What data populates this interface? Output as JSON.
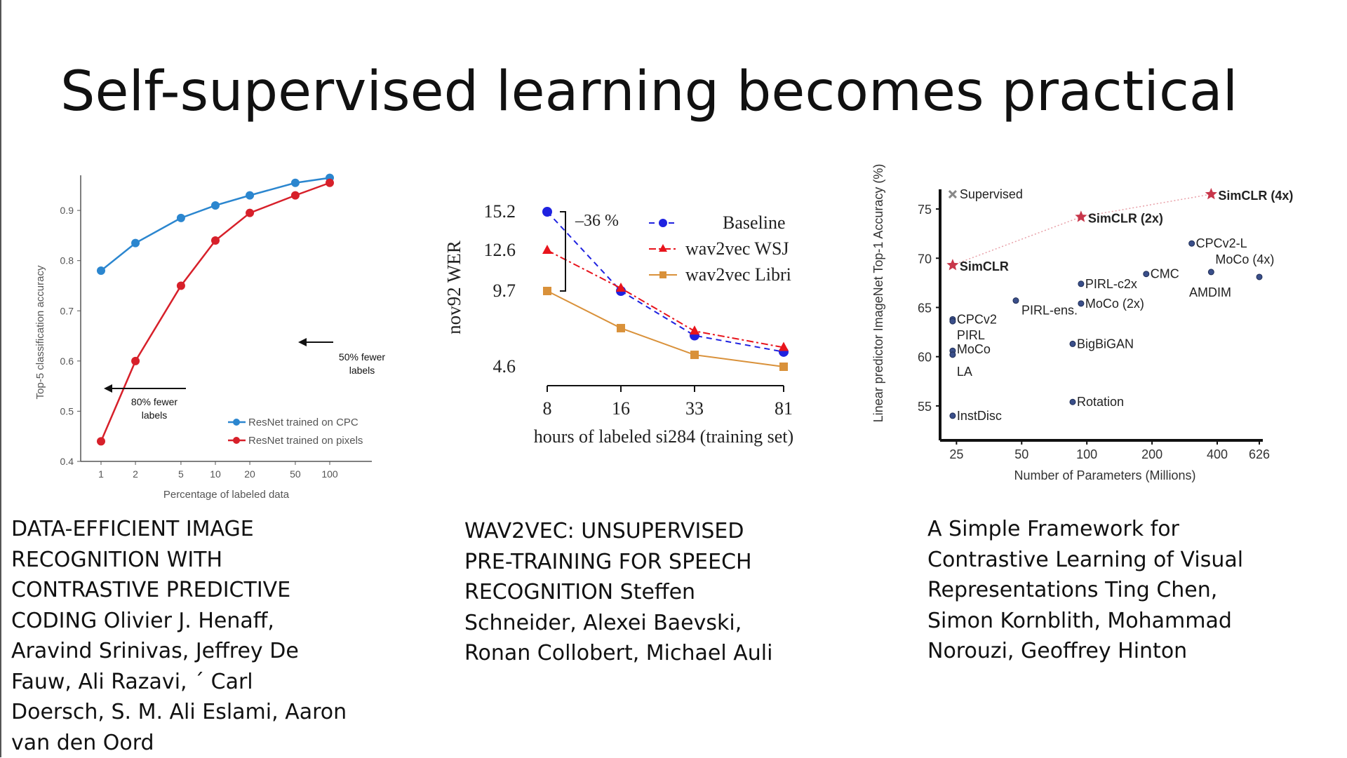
{
  "slide": {
    "title": "Self-supervised learning becomes practical",
    "captions": [
      "DATA-EFFICIENT IMAGE RECOGNITION WITH CONTRASTIVE PREDICTIVE CODING Olivier J. Henaff, Aravind Srinivas, Jeffrey De Fauw, Ali Razavi, ´ Carl Doersch, S. M. Ali Eslami, Aaron van den Oord",
      "WAV2VEC: UNSUPERVISED PRE-TRAINING FOR SPEECH RECOGNITION Steffen Schneider, Alexei Baevski, Ronan Collobert, Michael Auli",
      "A Simple Framework for Contrastive Learning of Visual Representations Ting Chen, Simon Kornblith, Mohammad Norouzi, Geoffrey Hinton"
    ]
  },
  "chart_data": [
    {
      "type": "line",
      "xlabel": "Percentage of labeled data",
      "ylabel": "Top-5 classification accuracy",
      "categories": [
        "1",
        "2",
        "5",
        "10",
        "20",
        "50",
        "100"
      ],
      "ylim": [
        0.4,
        0.97
      ],
      "yticks": [
        "0.4",
        "0.5",
        "0.6",
        "0.7",
        "0.8",
        "0.9"
      ],
      "series": [
        {
          "name": "ResNet trained on CPC",
          "color": "#2b86cf",
          "values": [
            0.78,
            0.835,
            0.885,
            0.91,
            0.93,
            0.955,
            0.965
          ]
        },
        {
          "name": "ResNet trained on pixels",
          "color": "#d7202a",
          "values": [
            0.44,
            0.6,
            0.75,
            0.84,
            0.895,
            0.93,
            0.955
          ]
        }
      ],
      "annotations": [
        "80% fewer labels",
        "50% fewer labels"
      ],
      "legend": "bottom-right"
    },
    {
      "type": "line",
      "xlabel": "hours of labeled si284 (training set)",
      "ylabel": "nov92 WER",
      "categories": [
        "8",
        "16",
        "33",
        "81"
      ],
      "yticks": [
        "4.6",
        "9.7",
        "12.6",
        "15.2"
      ],
      "ylim": [
        4.6,
        15.2
      ],
      "series": [
        {
          "name": "Baseline",
          "color": "#1f22e0",
          "values": [
            15.2,
            9.7,
            6.7,
            5.6
          ]
        },
        {
          "name": "wav2vec WSJ",
          "color": "#e8141c",
          "values": [
            12.6,
            9.9,
            7.0,
            5.9
          ]
        },
        {
          "name": "wav2vec Libri",
          "color": "#d9913a",
          "values": [
            9.7,
            7.2,
            5.4,
            4.6
          ]
        }
      ],
      "annotations": [
        "–36 %"
      ],
      "legend": "top-right"
    },
    {
      "type": "scatter",
      "xlabel": "Number of Parameters (Millions)",
      "ylabel": "Linear predictor ImageNet Top-1 Accuracy (%)",
      "xscale": "log",
      "xticks": [
        "25",
        "50",
        "100",
        "200",
        "400",
        "626"
      ],
      "yticks": [
        "55",
        "60",
        "65",
        "70",
        "75"
      ],
      "xlim": [
        21,
        700
      ],
      "ylim": [
        51.5,
        77
      ],
      "points": [
        {
          "label": "Supervised",
          "x": 24,
          "y": 76.5,
          "marker": "x"
        },
        {
          "label": "SimCLR",
          "x": 24,
          "y": 69.3,
          "marker": "star"
        },
        {
          "label": "SimCLR (2x)",
          "x": 94,
          "y": 74.2,
          "marker": "star"
        },
        {
          "label": "SimCLR (4x)",
          "x": 375,
          "y": 76.5,
          "marker": "star"
        },
        {
          "label": "CPCv2-L",
          "x": 305,
          "y": 71.5,
          "marker": "dot"
        },
        {
          "label": "MoCo (4x)",
          "x": 375,
          "y": 68.6,
          "marker": "dot"
        },
        {
          "label": "AMDIM",
          "x": 626,
          "y": 68.1,
          "marker": "dot"
        },
        {
          "label": "CMC",
          "x": 188,
          "y": 68.4,
          "marker": "dot"
        },
        {
          "label": "PIRL-c2x",
          "x": 94,
          "y": 67.4,
          "marker": "dot"
        },
        {
          "label": "MoCo (2x)",
          "x": 94,
          "y": 65.4,
          "marker": "dot"
        },
        {
          "label": "PIRL-ens.",
          "x": 47,
          "y": 65.7,
          "marker": "dot"
        },
        {
          "label": "CPCv2",
          "x": 24,
          "y": 63.8,
          "marker": "dot"
        },
        {
          "label": "PIRL",
          "x": 24,
          "y": 63.6,
          "marker": "dot"
        },
        {
          "label": "MoCo",
          "x": 24,
          "y": 60.6,
          "marker": "dot"
        },
        {
          "label": "LA",
          "x": 24,
          "y": 60.2,
          "marker": "dot"
        },
        {
          "label": "BigBiGAN",
          "x": 86,
          "y": 61.3,
          "marker": "dot"
        },
        {
          "label": "Rotation",
          "x": 86,
          "y": 55.4,
          "marker": "dot"
        },
        {
          "label": "InstDisc",
          "x": 24,
          "y": 54.0,
          "marker": "dot"
        }
      ],
      "colors": {
        "star": "#c8364a",
        "dot": "#3a4f8a",
        "cross": "#888888",
        "line": "#e8a0a8"
      }
    }
  ]
}
